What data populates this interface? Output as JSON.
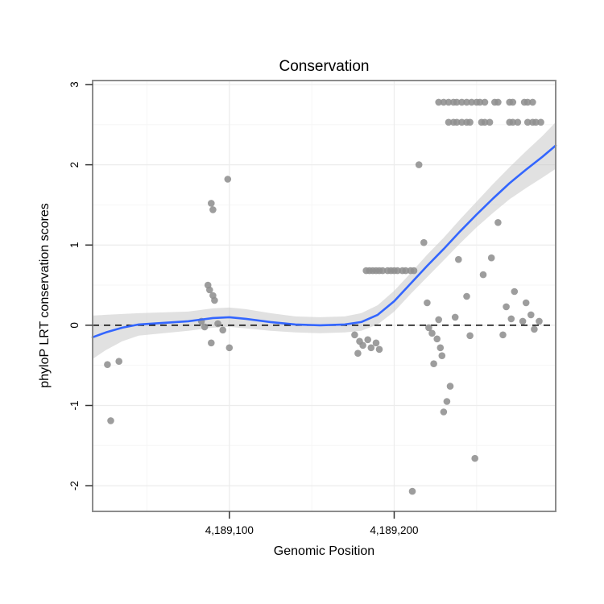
{
  "colors": {
    "background": "#ffffff",
    "panel_border": "#8c8c8c",
    "grid_major": "#ececec",
    "grid_minor": "#f6f6f6",
    "point": "#909090",
    "smooth_line": "#3366FF",
    "band": "#c8c8c8",
    "dashed_line": "#000000",
    "tick": "#333333"
  },
  "chart_data": {
    "type": "scatter",
    "title": "Conservation",
    "xlabel": "Genomic Position",
    "ylabel": "phyloP LRT conservation scores",
    "xlim": [
      4189017,
      4189298
    ],
    "ylim": [
      -2.32,
      3.05
    ],
    "x_ticks": [
      {
        "value": 4189100,
        "label": "4,189,100"
      },
      {
        "value": 4189200,
        "label": "4,189,200"
      }
    ],
    "y_ticks": [
      {
        "value": -2,
        "label": "-2"
      },
      {
        "value": -1,
        "label": "-1"
      },
      {
        "value": 0,
        "label": "0"
      },
      {
        "value": 1,
        "label": "1"
      },
      {
        "value": 2,
        "label": "2"
      },
      {
        "value": 3,
        "label": "3"
      }
    ],
    "hline": {
      "y": 0,
      "style": "dashed",
      "color": "#000000"
    },
    "points": [
      [
        4189028,
        -1.19
      ],
      [
        4189026,
        -0.49
      ],
      [
        4189033,
        -0.45
      ],
      [
        4189089,
        1.52
      ],
      [
        4189090,
        1.44
      ],
      [
        4189099,
        1.82
      ],
      [
        4189087,
        0.5
      ],
      [
        4189088,
        0.44
      ],
      [
        4189090,
        0.37
      ],
      [
        4189091,
        0.31
      ],
      [
        4189083,
        0.05
      ],
      [
        4189085,
        -0.02
      ],
      [
        4189093,
        0.02
      ],
      [
        4189096,
        -0.06
      ],
      [
        4189089,
        -0.22
      ],
      [
        4189100,
        -0.28
      ],
      [
        4189176,
        -0.12
      ],
      [
        4189178,
        -0.35
      ],
      [
        4189179,
        -0.2
      ],
      [
        4189181,
        -0.25
      ],
      [
        4189184,
        -0.18
      ],
      [
        4189186,
        -0.28
      ],
      [
        4189189,
        -0.22
      ],
      [
        4189191,
        -0.3
      ],
      [
        4189183,
        0.68
      ],
      [
        4189185,
        0.68
      ],
      [
        4189187,
        0.68
      ],
      [
        4189189,
        0.68
      ],
      [
        4189191,
        0.68
      ],
      [
        4189193,
        0.68
      ],
      [
        4189196,
        0.68
      ],
      [
        4189198,
        0.68
      ],
      [
        4189200,
        0.68
      ],
      [
        4189202,
        0.68
      ],
      [
        4189205,
        0.68
      ],
      [
        4189207,
        0.68
      ],
      [
        4189210,
        0.68
      ],
      [
        4189212,
        0.68
      ],
      [
        4189211,
        -2.07
      ],
      [
        4189215,
        2.0
      ],
      [
        4189218,
        1.03
      ],
      [
        4189220,
        0.28
      ],
      [
        4189221,
        -0.03
      ],
      [
        4189223,
        -0.1
      ],
      [
        4189224,
        -0.48
      ],
      [
        4189226,
        -0.17
      ],
      [
        4189227,
        0.07
      ],
      [
        4189228,
        -0.28
      ],
      [
        4189229,
        -0.38
      ],
      [
        4189230,
        -1.08
      ],
      [
        4189232,
        -0.95
      ],
      [
        4189234,
        -0.76
      ],
      [
        4189237,
        0.1
      ],
      [
        4189239,
        0.82
      ],
      [
        4189244,
        0.36
      ],
      [
        4189246,
        -0.13
      ],
      [
        4189249,
        -1.66
      ],
      [
        4189254,
        0.63
      ],
      [
        4189259,
        0.84
      ],
      [
        4189263,
        1.28
      ],
      [
        4189266,
        -0.12
      ],
      [
        4189268,
        0.23
      ],
      [
        4189271,
        0.08
      ],
      [
        4189273,
        0.42
      ],
      [
        4189278,
        0.05
      ],
      [
        4189280,
        0.28
      ],
      [
        4189283,
        0.13
      ],
      [
        4189285,
        -0.05
      ],
      [
        4189288,
        0.05
      ],
      [
        4189227,
        2.78
      ],
      [
        4189230,
        2.78
      ],
      [
        4189233,
        2.78
      ],
      [
        4189236,
        2.78
      ],
      [
        4189238,
        2.78
      ],
      [
        4189241,
        2.78
      ],
      [
        4189244,
        2.78
      ],
      [
        4189247,
        2.78
      ],
      [
        4189250,
        2.78
      ],
      [
        4189252,
        2.78
      ],
      [
        4189255,
        2.78
      ],
      [
        4189261,
        2.78
      ],
      [
        4189263,
        2.78
      ],
      [
        4189270,
        2.78
      ],
      [
        4189272,
        2.78
      ],
      [
        4189279,
        2.78
      ],
      [
        4189281,
        2.78
      ],
      [
        4189284,
        2.78
      ],
      [
        4189233,
        2.53
      ],
      [
        4189236,
        2.53
      ],
      [
        4189238,
        2.53
      ],
      [
        4189241,
        2.53
      ],
      [
        4189244,
        2.53
      ],
      [
        4189246,
        2.53
      ],
      [
        4189253,
        2.53
      ],
      [
        4189255,
        2.53
      ],
      [
        4189258,
        2.53
      ],
      [
        4189270,
        2.53
      ],
      [
        4189272,
        2.53
      ],
      [
        4189275,
        2.53
      ],
      [
        4189281,
        2.53
      ],
      [
        4189284,
        2.53
      ],
      [
        4189286,
        2.53
      ],
      [
        4189289,
        2.53
      ]
    ],
    "smooth": {
      "x": [
        4189017,
        4189025,
        4189035,
        4189045,
        4189060,
        4189075,
        4189090,
        4189100,
        4189110,
        4189125,
        4189140,
        4189155,
        4189170,
        4189180,
        4189190,
        4189200,
        4189210,
        4189220,
        4189230,
        4189240,
        4189250,
        4189260,
        4189270,
        4189280,
        4189290,
        4189298
      ],
      "y": [
        -0.15,
        -0.09,
        -0.03,
        0.01,
        0.03,
        0.05,
        0.09,
        0.1,
        0.08,
        0.04,
        0.01,
        0.0,
        0.01,
        0.04,
        0.13,
        0.3,
        0.52,
        0.74,
        0.95,
        1.17,
        1.38,
        1.58,
        1.77,
        1.94,
        2.1,
        2.24
      ],
      "half": [
        0.27,
        0.22,
        0.17,
        0.14,
        0.13,
        0.12,
        0.12,
        0.12,
        0.12,
        0.11,
        0.1,
        0.1,
        0.1,
        0.11,
        0.12,
        0.13,
        0.13,
        0.14,
        0.14,
        0.15,
        0.16,
        0.18,
        0.2,
        0.23,
        0.26,
        0.29
      ]
    }
  }
}
